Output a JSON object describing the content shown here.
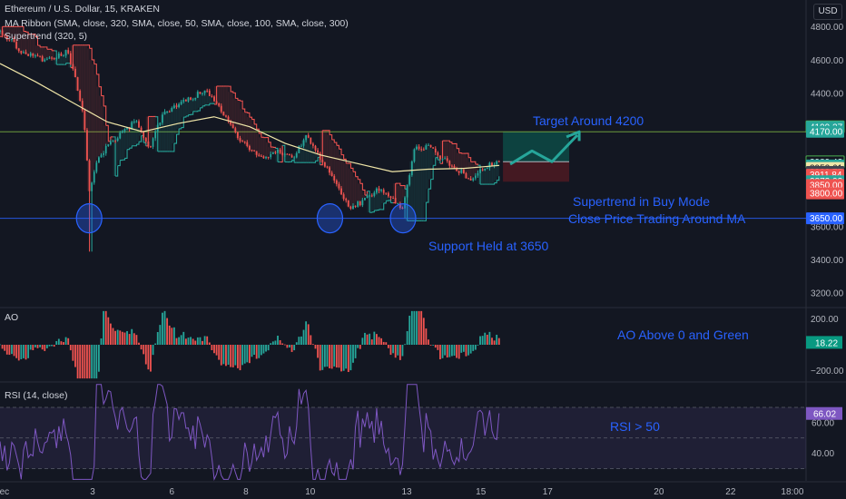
{
  "header": {
    "symbol_line": "Ethereum / U.S. Dollar, 15, KRAKEN",
    "ma_ribbon": "MA Ribbon (SMA, close, 320, SMA, close, 50, SMA, close, 100, SMA, close, 300)",
    "supertrend": "Supertrend (320, 5)",
    "currency_button": "USD"
  },
  "annotations": {
    "target": "Target Around 4200",
    "supertrend_buy": "Supertrend in Buy Mode",
    "close_ma": "Close Price Trading Around MA",
    "support": "Support Held at 3650",
    "ao_note": "AO Above 0 and Green",
    "rsi_note": "RSI > 50"
  },
  "panes": {
    "ao_label": "AO",
    "rsi_label": "RSI (14, close)"
  },
  "colors": {
    "background": "#131722",
    "up": "#26a69a",
    "down": "#ef5350",
    "ma": "#f0e6a8",
    "annotation": "#2962ff",
    "rsi": "#7e57c2",
    "ao_up": "#26a69a",
    "ao_down": "#ef5350",
    "target_zone": "#0d4a45",
    "stop_zone": "#4a1a22",
    "trend_arrow": "#26a69a"
  },
  "chart_data": [
    {
      "type": "candlestick",
      "title": "Ethereum / U.S. Dollar, 15, KRAKEN",
      "x_ticks": [
        "Dec",
        "3",
        "6",
        "8",
        "10",
        "13",
        "15",
        "17",
        "20",
        "22",
        "18:00"
      ],
      "y_ticks": [
        3200,
        3400,
        3600,
        3800,
        4000,
        4200,
        4400,
        4600,
        4800
      ],
      "ylim": [
        3190,
        4880
      ],
      "price_path": [
        {
          "x": 0.0,
          "y": 4770
        },
        {
          "x": 0.3,
          "y": 4720
        },
        {
          "x": 0.6,
          "y": 4650
        },
        {
          "x": 1.0,
          "y": 4620
        },
        {
          "x": 1.3,
          "y": 4590
        },
        {
          "x": 1.6,
          "y": 4630
        },
        {
          "x": 1.9,
          "y": 4650
        },
        {
          "x": 2.1,
          "y": 4500
        },
        {
          "x": 2.35,
          "y": 4250
        },
        {
          "x": 2.5,
          "y": 3820
        },
        {
          "x": 2.7,
          "y": 3980
        },
        {
          "x": 3.0,
          "y": 4080
        },
        {
          "x": 3.4,
          "y": 4160
        },
        {
          "x": 3.8,
          "y": 4230
        },
        {
          "x": 4.2,
          "y": 4080
        },
        {
          "x": 4.6,
          "y": 4290
        },
        {
          "x": 5.0,
          "y": 4330
        },
        {
          "x": 5.4,
          "y": 4380
        },
        {
          "x": 5.8,
          "y": 4420
        },
        {
          "x": 6.2,
          "y": 4300
        },
        {
          "x": 6.6,
          "y": 4160
        },
        {
          "x": 7.0,
          "y": 4060
        },
        {
          "x": 7.4,
          "y": 4020
        },
        {
          "x": 7.8,
          "y": 4060
        },
        {
          "x": 8.2,
          "y": 4010
        },
        {
          "x": 8.6,
          "y": 4150
        },
        {
          "x": 9.0,
          "y": 4010
        },
        {
          "x": 9.4,
          "y": 3870
        },
        {
          "x": 9.8,
          "y": 3700
        },
        {
          "x": 10.2,
          "y": 3760
        },
        {
          "x": 10.6,
          "y": 3820
        },
        {
          "x": 11.0,
          "y": 3780
        },
        {
          "x": 11.3,
          "y": 3700
        },
        {
          "x": 11.6,
          "y": 4060
        },
        {
          "x": 12.0,
          "y": 4080
        },
        {
          "x": 12.4,
          "y": 4010
        },
        {
          "x": 12.8,
          "y": 3950
        },
        {
          "x": 13.2,
          "y": 3880
        },
        {
          "x": 13.6,
          "y": 3960
        },
        {
          "x": 14.0,
          "y": 3990
        }
      ],
      "wick_lows": [
        {
          "x": 2.55,
          "y": 3450
        },
        {
          "x": 11.35,
          "y": 3650
        }
      ],
      "series": [
        {
          "type": "line",
          "x": [
            0,
            1,
            2,
            3,
            4,
            5,
            6,
            7,
            8,
            9,
            10,
            11,
            12,
            13,
            14
          ],
          "values": [
            4580,
            4470,
            4350,
            4230,
            4170,
            4220,
            4260,
            4200,
            4100,
            4030,
            3980,
            3930,
            3945,
            3950,
            3968
          ]
        }
      ],
      "horizontal_lines": [
        4170,
        3650
      ],
      "target_zone": {
        "x0": 14.0,
        "x1": 15.5,
        "y0": 3990,
        "y1": 4170
      },
      "stop_zone": {
        "x0": 14.0,
        "x1": 15.5,
        "y0": 3870,
        "y1": 3990
      },
      "price_labels": [
        {
          "text": "4200.00",
          "value": 4200,
          "color": "#131722"
        },
        {
          "text": "4199.27",
          "value": 4199.27,
          "color": "#26a69a"
        },
        {
          "text": "4170.00",
          "value": 4170,
          "color": "#26a69a"
        },
        {
          "text": "3989.43",
          "value": 3989.43,
          "color": "#131722"
        },
        {
          "text": "3967.42",
          "value": 3967.42,
          "color": "#26a69a"
        },
        {
          "text": "3952.61",
          "value": 3952.61,
          "color": "#f0e6a8"
        },
        {
          "text": "3928.75",
          "value": 3928.75,
          "color": "#434651"
        },
        {
          "text": "3911.84",
          "value": 3911.84,
          "color": "#ef5350"
        },
        {
          "text": "3873.03",
          "value": 3873.03,
          "color": "#26a69a"
        },
        {
          "text": "3850.00",
          "value": 3850,
          "color": "#ef5350"
        },
        {
          "text": "3800.00",
          "value": 3800,
          "color": "#ef5350"
        },
        {
          "text": "3650.00",
          "value": 3650,
          "color": "#2962ff"
        }
      ]
    },
    {
      "type": "bar",
      "title": "AO",
      "y_ticks": [
        200,
        -200
      ],
      "ylim": [
        -280,
        280
      ],
      "current_value": "18.22"
    },
    {
      "type": "line",
      "title": "RSI (14, close)",
      "y_ticks": [
        60,
        40
      ],
      "ylim": [
        22,
        86
      ],
      "band": [
        30,
        70
      ],
      "current_value": "66.02"
    }
  ]
}
